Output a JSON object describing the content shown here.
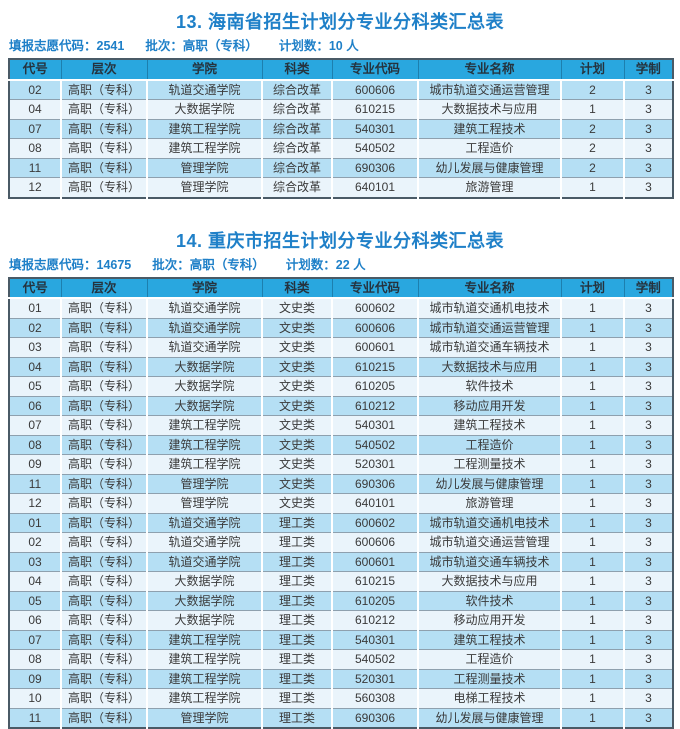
{
  "colors": {
    "header-bg": "#29a7df",
    "row-shade": "#b5dff4",
    "row-light": "#eaf4fb",
    "title-blue": "#1f80c8",
    "border-dark": "#4a5a66",
    "row-line": "#8ea0ae",
    "cell-text": "#3a3a3a"
  },
  "tables": [
    {
      "title": "13. 海南省招生计划分专业分科类汇总表",
      "meta": {
        "volunteer_code": "填报志愿代码：2541",
        "batch": "批次：高职（专科）",
        "plan_count": "计划数：10 人"
      },
      "columns": [
        "代号",
        "层次",
        "学院",
        "科类",
        "专业代码",
        "专业名称",
        "计划",
        "学制"
      ],
      "rows": [
        [
          "02",
          "高职（专科）",
          "轨道交通学院",
          "综合改革",
          "600606",
          "城市轨道交通运营管理",
          "2",
          "3"
        ],
        [
          "04",
          "高职（专科）",
          "大数据学院",
          "综合改革",
          "610215",
          "大数据技术与应用",
          "1",
          "3"
        ],
        [
          "07",
          "高职（专科）",
          "建筑工程学院",
          "综合改革",
          "540301",
          "建筑工程技术",
          "2",
          "3"
        ],
        [
          "08",
          "高职（专科）",
          "建筑工程学院",
          "综合改革",
          "540502",
          "工程造价",
          "2",
          "3"
        ],
        [
          "11",
          "高职（专科）",
          "管理学院",
          "综合改革",
          "690306",
          "幼儿发展与健康管理",
          "2",
          "3"
        ],
        [
          "12",
          "高职（专科）",
          "管理学院",
          "综合改革",
          "640101",
          "旅游管理",
          "1",
          "3"
        ]
      ]
    },
    {
      "title": "14. 重庆市招生计划分专业分科类汇总表",
      "meta": {
        "volunteer_code": "填报志愿代码：14675",
        "batch": "批次：高职（专科）",
        "plan_count": "计划数：22 人"
      },
      "columns": [
        "代号",
        "层次",
        "学院",
        "科类",
        "专业代码",
        "专业名称",
        "计划",
        "学制"
      ],
      "rows": [
        [
          "01",
          "高职（专科）",
          "轨道交通学院",
          "文史类",
          "600602",
          "城市轨道交通机电技术",
          "1",
          "3"
        ],
        [
          "02",
          "高职（专科）",
          "轨道交通学院",
          "文史类",
          "600606",
          "城市轨道交通运营管理",
          "1",
          "3"
        ],
        [
          "03",
          "高职（专科）",
          "轨道交通学院",
          "文史类",
          "600601",
          "城市轨道交通车辆技术",
          "1",
          "3"
        ],
        [
          "04",
          "高职（专科）",
          "大数据学院",
          "文史类",
          "610215",
          "大数据技术与应用",
          "1",
          "3"
        ],
        [
          "05",
          "高职（专科）",
          "大数据学院",
          "文史类",
          "610205",
          "软件技术",
          "1",
          "3"
        ],
        [
          "06",
          "高职（专科）",
          "大数据学院",
          "文史类",
          "610212",
          "移动应用开发",
          "1",
          "3"
        ],
        [
          "07",
          "高职（专科）",
          "建筑工程学院",
          "文史类",
          "540301",
          "建筑工程技术",
          "1",
          "3"
        ],
        [
          "08",
          "高职（专科）",
          "建筑工程学院",
          "文史类",
          "540502",
          "工程造价",
          "1",
          "3"
        ],
        [
          "09",
          "高职（专科）",
          "建筑工程学院",
          "文史类",
          "520301",
          "工程测量技术",
          "1",
          "3"
        ],
        [
          "11",
          "高职（专科）",
          "管理学院",
          "文史类",
          "690306",
          "幼儿发展与健康管理",
          "1",
          "3"
        ],
        [
          "12",
          "高职（专科）",
          "管理学院",
          "文史类",
          "640101",
          "旅游管理",
          "1",
          "3"
        ],
        [
          "01",
          "高职（专科）",
          "轨道交通学院",
          "理工类",
          "600602",
          "城市轨道交通机电技术",
          "1",
          "3"
        ],
        [
          "02",
          "高职（专科）",
          "轨道交通学院",
          "理工类",
          "600606",
          "城市轨道交通运营管理",
          "1",
          "3"
        ],
        [
          "03",
          "高职（专科）",
          "轨道交通学院",
          "理工类",
          "600601",
          "城市轨道交通车辆技术",
          "1",
          "3"
        ],
        [
          "04",
          "高职（专科）",
          "大数据学院",
          "理工类",
          "610215",
          "大数据技术与应用",
          "1",
          "3"
        ],
        [
          "05",
          "高职（专科）",
          "大数据学院",
          "理工类",
          "610205",
          "软件技术",
          "1",
          "3"
        ],
        [
          "06",
          "高职（专科）",
          "大数据学院",
          "理工类",
          "610212",
          "移动应用开发",
          "1",
          "3"
        ],
        [
          "07",
          "高职（专科）",
          "建筑工程学院",
          "理工类",
          "540301",
          "建筑工程技术",
          "1",
          "3"
        ],
        [
          "08",
          "高职（专科）",
          "建筑工程学院",
          "理工类",
          "540502",
          "工程造价",
          "1",
          "3"
        ],
        [
          "09",
          "高职（专科）",
          "建筑工程学院",
          "理工类",
          "520301",
          "工程测量技术",
          "1",
          "3"
        ],
        [
          "10",
          "高职（专科）",
          "建筑工程学院",
          "理工类",
          "560308",
          "电梯工程技术",
          "1",
          "3"
        ],
        [
          "11",
          "高职（专科）",
          "管理学院",
          "理工类",
          "690306",
          "幼儿发展与健康管理",
          "1",
          "3"
        ]
      ]
    }
  ]
}
